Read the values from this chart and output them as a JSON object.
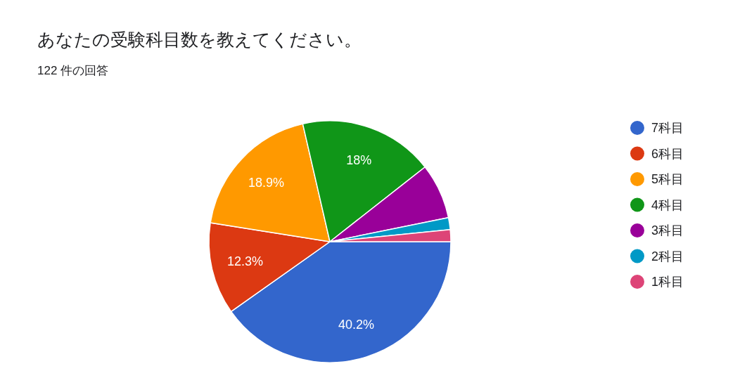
{
  "chart_data": {
    "type": "pie",
    "title": "あなたの受験科目数を教えてください。",
    "subtitle": "122 件の回答",
    "categories": [
      "7科目",
      "6科目",
      "5科目",
      "4科目",
      "3科目",
      "2科目",
      "1科目"
    ],
    "values": [
      40.2,
      12.3,
      18.9,
      18.0,
      7.4,
      1.6,
      1.6
    ],
    "colors": [
      "#3366cc",
      "#dc3912",
      "#ff9900",
      "#109618",
      "#990099",
      "#0099c6",
      "#dd4477"
    ],
    "value_labels": [
      "40.2%",
      "12.3%",
      "18.9%",
      "18%",
      null,
      null,
      null
    ],
    "legend": "right"
  }
}
